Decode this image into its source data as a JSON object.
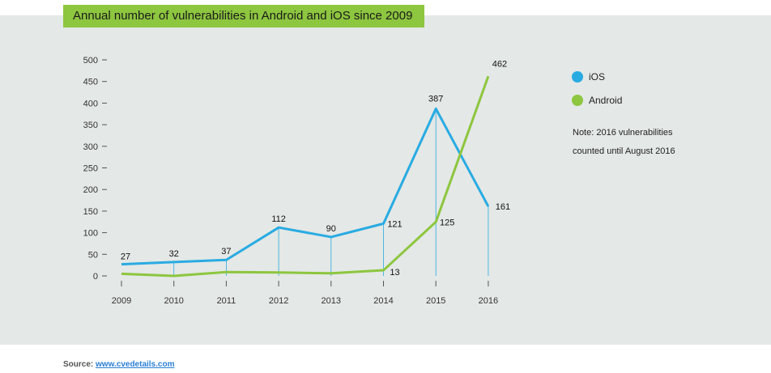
{
  "title": "Annual number of vulnerabilities in Android and iOS since 2009",
  "legend": [
    {
      "name": "iOS",
      "color": "#29abe2"
    },
    {
      "name": "Android",
      "color": "#8dc63f"
    }
  ],
  "note": {
    "line1": "Note: 2016 vulnerabilities",
    "line2": "counted until August 2016"
  },
  "source": {
    "label": "Source:",
    "link_text": "www.cvedetails.com"
  },
  "chart_data": {
    "type": "line",
    "title": "Annual number of vulnerabilities in Android and iOS since 2009",
    "x": [
      "2009",
      "2010",
      "2011",
      "2012",
      "2013",
      "2014",
      "2015",
      "2016"
    ],
    "yticks": [
      0,
      50,
      100,
      150,
      200,
      250,
      300,
      350,
      400,
      450,
      500
    ],
    "ylim": [
      0,
      500
    ],
    "grid": false,
    "legend_position": "right",
    "series": [
      {
        "name": "iOS",
        "color": "#29abe2",
        "values": [
          27,
          32,
          37,
          112,
          90,
          121,
          387,
          161
        ],
        "labels": [
          "27",
          "32",
          "37",
          "112",
          "90",
          "121",
          "387",
          "161"
        ]
      },
      {
        "name": "Android",
        "color": "#8dc63f",
        "values": [
          5,
          0,
          9,
          8,
          6,
          13,
          125,
          462
        ],
        "labels": [
          "",
          "",
          "",
          "",
          "",
          "13",
          "125",
          "462"
        ]
      }
    ]
  }
}
